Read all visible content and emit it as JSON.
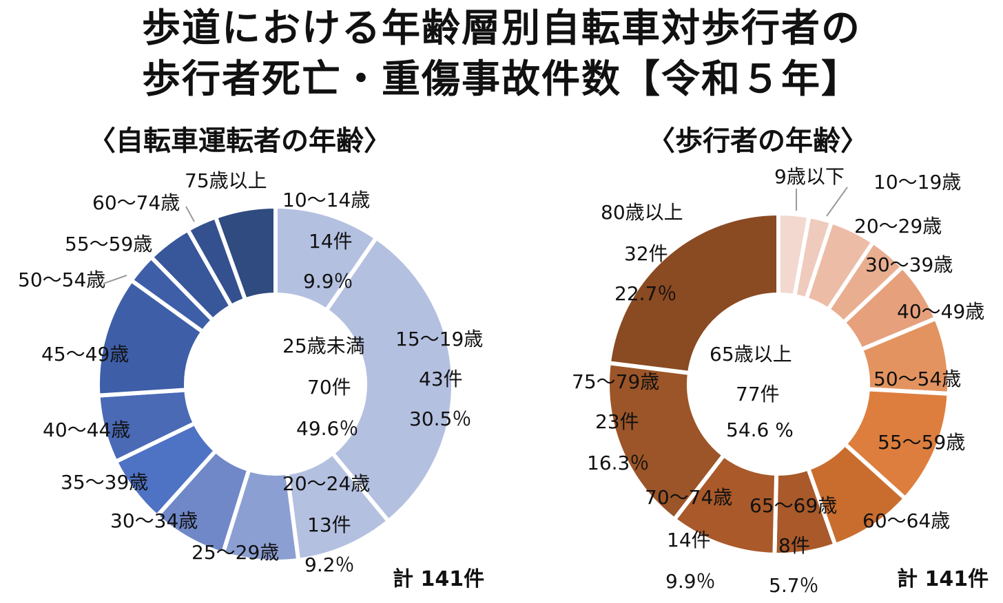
{
  "title_line1": "歩道における年齢層別自転車対歩行者の",
  "title_line2": "歩行者死亡・重傷事故件数【令和５年】",
  "chart_data": [
    {
      "type": "donut",
      "title": "〈自転車運転者の年齢〉",
      "total": "計 141件",
      "center": {
        "label": "25歳未満",
        "count": "70件",
        "percent": "49.6％"
      },
      "categories": [
        "10～14歳",
        "15～19歳",
        "20～24歳",
        "25～29歳",
        "30～34歳",
        "35～39歳",
        "40～44歳",
        "45～49歳",
        "50～54歳",
        "55～59歳",
        "60～74歳",
        "75歳以上"
      ],
      "values": [
        14,
        43,
        13,
        10,
        10,
        9,
        9,
        16,
        4,
        6,
        4,
        8
      ],
      "printed": [
        {
          "count": "14件",
          "percent": "9.9％"
        },
        {
          "count": "43件",
          "percent": "30.5％"
        },
        {
          "count": "13件",
          "percent": "9.2％"
        },
        null,
        null,
        null,
        null,
        null,
        null,
        null,
        null,
        null
      ],
      "colors": [
        "#b4c0e0",
        "#b4c0e0",
        "#b4c0e0",
        "#8c9fd2",
        "#7088c8",
        "#4e72c4",
        "#4a6ab6",
        "#3e5ea8",
        "#3e5ea8",
        "#38569a",
        "#34508e",
        "#2f4b80"
      ]
    },
    {
      "type": "donut",
      "title": "〈歩行者の年齢〉",
      "total": "計 141件",
      "center": {
        "label": "65歳以上",
        "count": "77件",
        "percent": "54.6 %"
      },
      "categories": [
        "9歳以下",
        "10～19歳",
        "20～29歳",
        "30～39歳",
        "40～49歳",
        "50～54歳",
        "55～59歳",
        "60～64歳",
        "65～69歳",
        "70～74歳",
        "75～79歳",
        "80歳以上"
      ],
      "values": [
        4,
        3,
        6,
        5,
        8,
        10,
        15,
        11,
        8,
        14,
        23,
        32
      ],
      "printed": [
        null,
        null,
        null,
        null,
        null,
        null,
        null,
        null,
        {
          "count": "8件",
          "percent": "5.7％"
        },
        {
          "count": "14件",
          "percent": "9.9％"
        },
        {
          "count": "23件",
          "percent": "16.3％"
        },
        {
          "count": "32件",
          "percent": "22.7％"
        }
      ],
      "colors": [
        "#f2d8cf",
        "#efcbbd",
        "#ecbca6",
        "#e9ae90",
        "#e6a07c",
        "#e3935f",
        "#dd7e3e",
        "#c96d2e",
        "#a9592a",
        "#a9592a",
        "#9c5528",
        "#8a4a22"
      ]
    }
  ]
}
